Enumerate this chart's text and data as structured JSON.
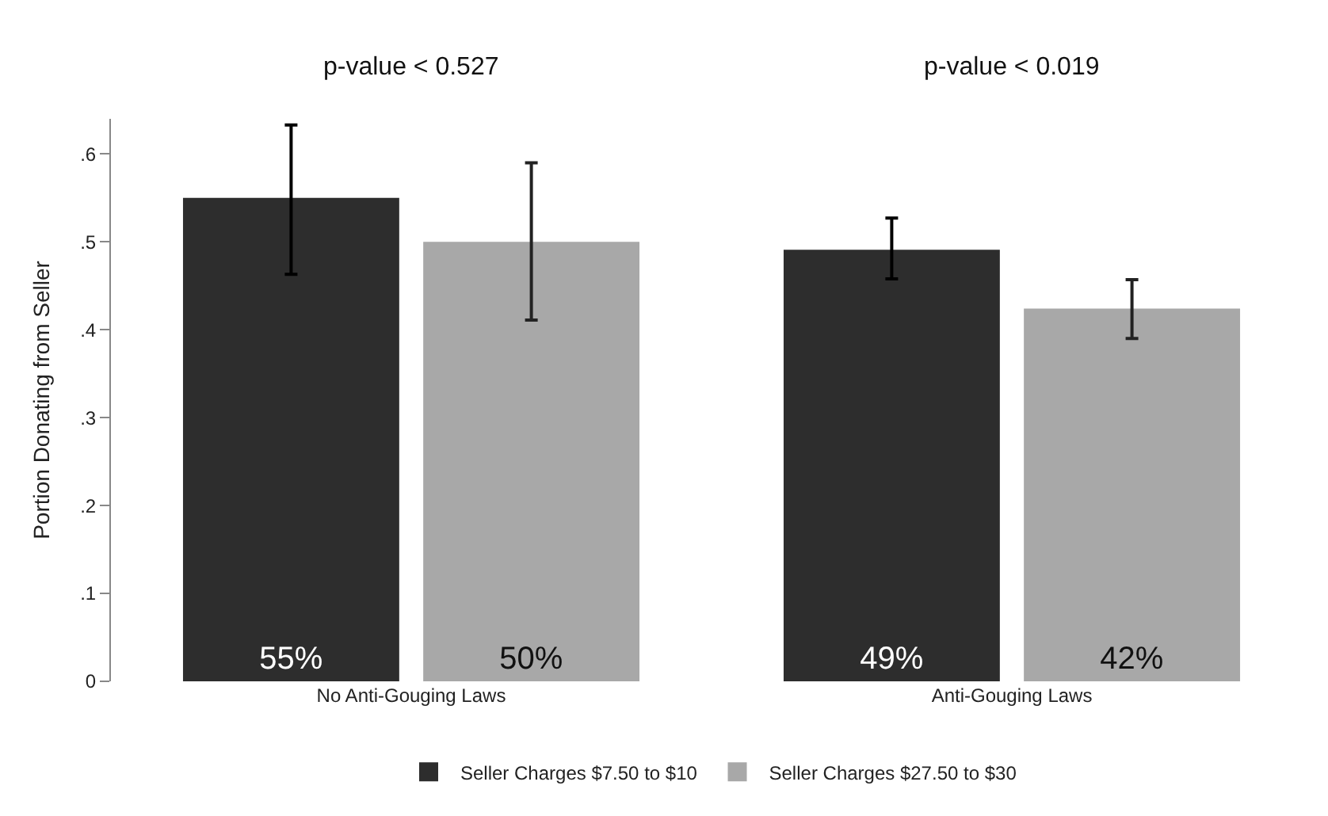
{
  "chart_data": {
    "type": "bar",
    "ylabel": "Portion Donating from Seller",
    "categories": [
      "No Anti-Gouging Laws",
      "Anti-Gouging Laws"
    ],
    "series": [
      {
        "name": "Seller Charges $7.50 to $10",
        "color": "#2d2d2d",
        "values": [
          0.55,
          0.491
        ],
        "errors": [
          [
            0.463,
            0.633
          ],
          [
            0.458,
            0.527
          ]
        ],
        "value_labels": [
          "55%",
          "49%"
        ]
      },
      {
        "name": "Seller Charges $27.50 to $30",
        "color": "#a8a8a8",
        "values": [
          0.5,
          0.424
        ],
        "errors": [
          [
            0.411,
            0.59
          ],
          [
            0.39,
            0.457
          ]
        ],
        "value_labels": [
          "50%",
          "42%"
        ]
      }
    ],
    "annotations": [
      "p-value < 0.527",
      "p-value < 0.019"
    ],
    "ylim": [
      0,
      0.64
    ],
    "yticks": [
      {
        "value": 0,
        "label": "0"
      },
      {
        "value": 0.1,
        "label": ".1"
      },
      {
        "value": 0.2,
        "label": ".2"
      },
      {
        "value": 0.3,
        "label": ".3"
      },
      {
        "value": 0.4,
        "label": ".4"
      },
      {
        "value": 0.5,
        "label": ".5"
      },
      {
        "value": 0.6,
        "label": ".6"
      }
    ],
    "grid": false,
    "legend": "bottom"
  }
}
